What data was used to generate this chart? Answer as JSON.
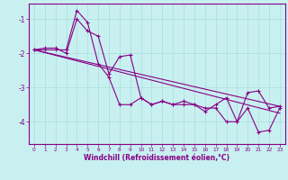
{
  "xlabel": "Windchill (Refroidissement éolien,°C)",
  "background_color": "#c8f0f0",
  "line_color": "#880088",
  "grid_color": "#aadddd",
  "xlim": [
    -0.5,
    23.5
  ],
  "ylim": [
    -4.65,
    -0.55
  ],
  "yticks": [
    -4,
    -3,
    -2,
    -1
  ],
  "xticks": [
    0,
    1,
    2,
    3,
    4,
    5,
    6,
    7,
    8,
    9,
    10,
    11,
    12,
    13,
    14,
    15,
    16,
    17,
    18,
    19,
    20,
    21,
    22,
    23
  ],
  "series1_x": [
    0,
    1,
    2,
    3,
    4,
    5,
    6,
    7,
    8,
    9,
    10,
    11,
    12,
    13,
    14,
    15,
    16,
    17,
    18,
    19,
    20,
    21,
    22,
    23
  ],
  "series1_y": [
    -1.9,
    -1.85,
    -1.85,
    -2.0,
    -1.0,
    -1.35,
    -1.5,
    -2.6,
    -2.1,
    -2.05,
    -3.3,
    -3.5,
    -3.4,
    -3.5,
    -3.4,
    -3.5,
    -3.7,
    -3.5,
    -3.3,
    -4.0,
    -3.15,
    -3.1,
    -3.6,
    -3.55
  ],
  "series2_x": [
    0,
    1,
    2,
    3,
    4,
    5,
    6,
    7,
    8,
    9,
    10,
    11,
    12,
    13,
    14,
    15,
    16,
    17,
    18,
    19,
    20,
    21,
    22,
    23
  ],
  "series2_y": [
    -1.9,
    -1.9,
    -1.9,
    -1.9,
    -0.75,
    -1.1,
    -2.3,
    -2.7,
    -3.5,
    -3.5,
    -3.3,
    -3.5,
    -3.4,
    -3.5,
    -3.5,
    -3.5,
    -3.6,
    -3.6,
    -4.0,
    -4.0,
    -3.6,
    -4.3,
    -4.25,
    -3.6
  ],
  "trend_x": [
    0,
    23
  ],
  "trend_y": [
    -1.9,
    -3.55
  ],
  "trend2_x": [
    0,
    23
  ],
  "trend2_y": [
    -1.9,
    -3.75
  ],
  "line_width": 0.8
}
